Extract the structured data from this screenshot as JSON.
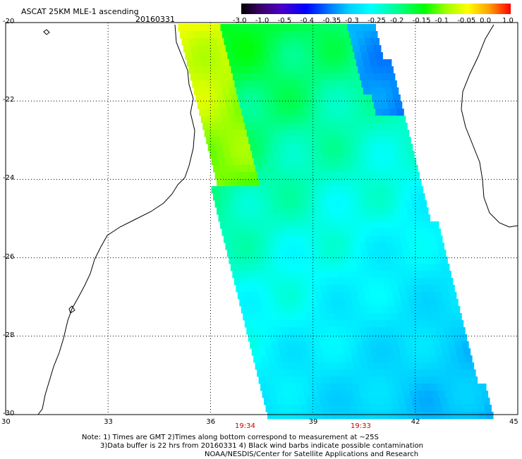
{
  "header": {
    "title": "ASCAT 25KM MLE-1 ascending",
    "date": "20160331"
  },
  "colorbar": {
    "ticks": [
      "-3.0",
      "-1.0",
      "-0.5",
      "-0.4",
      "-0.35",
      "-0.3",
      "-0.25",
      "-0.2",
      "-0.15",
      "-0.1",
      "-0.05",
      "0.0",
      "1.0"
    ]
  },
  "axes": {
    "lat_labels": [
      "-20",
      "-22",
      "-24",
      "-26",
      "-28",
      "-30"
    ],
    "lon_labels": [
      "30",
      "33",
      "36",
      "39",
      "42",
      "45"
    ]
  },
  "times": [
    "19:34",
    "19:33"
  ],
  "notes": [
    "Note: 1) Times are GMT 2)Times along bottom correspond to measurement at ~25S",
    "3)Data buffer is 22 hrs from 20160331 4) Black wind barbs indicate possible contamination",
    "NOAA/NESDIS/Center for Satellite Applications and Research"
  ]
}
